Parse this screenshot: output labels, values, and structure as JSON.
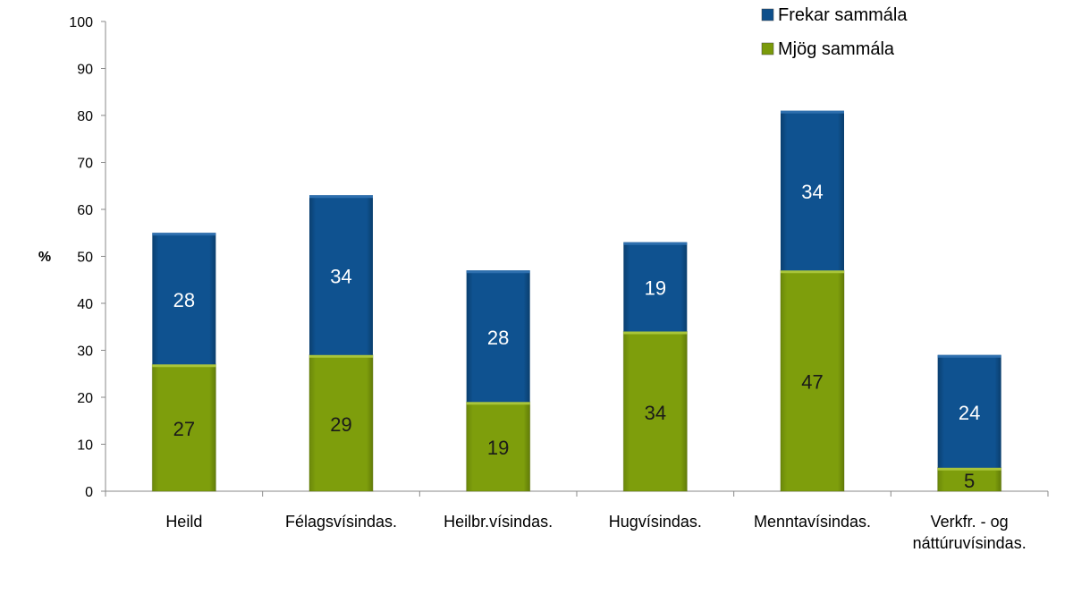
{
  "chart_data": {
    "type": "bar",
    "stacked": true,
    "title": "",
    "xlabel": "",
    "ylabel": "%",
    "ylim": [
      0,
      100
    ],
    "yticks": [
      0,
      10,
      20,
      30,
      40,
      50,
      60,
      70,
      80,
      90,
      100
    ],
    "grid": false,
    "legend_placement": "top-right",
    "categories": [
      "Heild",
      "Félagsvísindas.",
      "Heilbr.vísindas.",
      "Hugvísindas.",
      "Menntavísindas.",
      "Verkfr. - og\nnáttúruvísindas."
    ],
    "series": [
      {
        "name": "Mjög sammála",
        "color": "#7a9a0a",
        "values": [
          27,
          29,
          19,
          34,
          47,
          5
        ]
      },
      {
        "name": "Frekar sammála",
        "color": "#0d4f8b",
        "values": [
          28,
          34,
          28,
          19,
          34,
          24
        ]
      }
    ],
    "legend_order": [
      "Frekar sammála",
      "Mjög sammála"
    ]
  }
}
